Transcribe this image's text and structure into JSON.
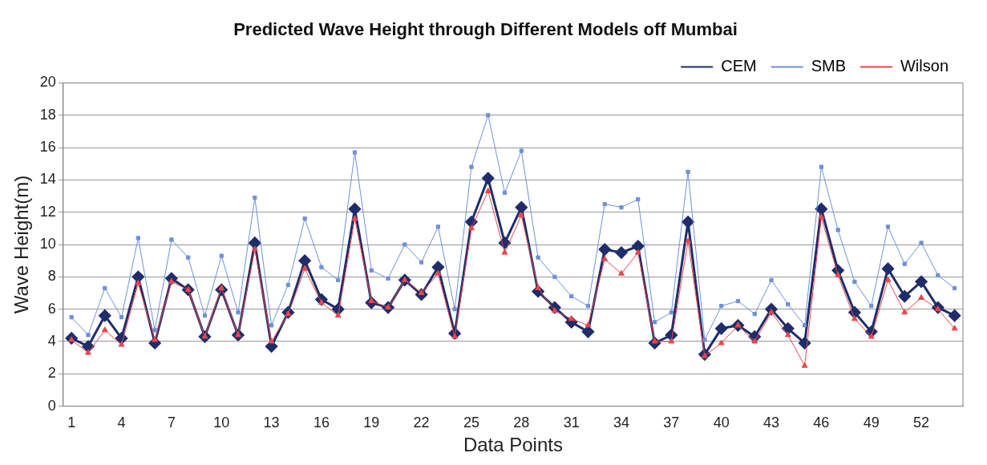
{
  "chart_data": {
    "type": "line",
    "title": "Predicted Wave Height through Different Models off Mumbai",
    "xlabel": "Data Points",
    "ylabel": "Wave Height(m)",
    "categories": [
      "1",
      null,
      null,
      "4",
      null,
      null,
      "7",
      null,
      null,
      "10",
      null,
      null,
      "13",
      null,
      null,
      "16",
      null,
      null,
      "19",
      null,
      null,
      "22",
      null,
      null,
      "25",
      null,
      null,
      "28",
      null,
      null,
      "31",
      null,
      null,
      "34",
      null,
      null,
      "37",
      null,
      null,
      "40",
      null,
      null,
      "43",
      null,
      null,
      "46",
      null,
      null,
      "49",
      null,
      null,
      "52",
      null,
      null
    ],
    "series": [
      {
        "name": "CEM",
        "color": "#1f2d6b",
        "marker": "diamond",
        "values": [
          4.2,
          3.7,
          5.6,
          4.2,
          8.0,
          3.9,
          7.9,
          7.2,
          4.3,
          7.2,
          4.4,
          10.1,
          3.7,
          5.8,
          9.0,
          6.6,
          6.0,
          12.2,
          6.4,
          6.1,
          7.8,
          6.9,
          8.6,
          4.5,
          11.4,
          14.1,
          10.1,
          12.3,
          7.1,
          6.1,
          5.2,
          4.6,
          9.7,
          9.5,
          9.9,
          3.9,
          4.4,
          11.4,
          3.2,
          4.8,
          5.0,
          4.3,
          6.0,
          4.8,
          3.9,
          12.2,
          8.4,
          5.8,
          4.6,
          8.5,
          6.8,
          7.7,
          6.1,
          5.6
        ]
      },
      {
        "name": "SMB",
        "color": "#6f90d8",
        "marker": "square",
        "values": [
          5.5,
          4.4,
          7.3,
          5.5,
          10.4,
          4.7,
          10.3,
          9.2,
          5.6,
          9.3,
          5.8,
          12.9,
          5.0,
          7.5,
          11.6,
          8.6,
          7.8,
          15.7,
          8.4,
          7.9,
          10.0,
          8.9,
          11.1,
          6.0,
          14.8,
          18.0,
          13.2,
          15.8,
          9.2,
          8.0,
          6.8,
          6.2,
          12.5,
          12.3,
          12.8,
          5.2,
          5.8,
          14.5,
          4.1,
          6.2,
          6.5,
          5.7,
          7.8,
          6.3,
          5.0,
          14.8,
          10.9,
          7.7,
          6.2,
          11.1,
          8.8,
          10.1,
          8.1,
          7.3
        ]
      },
      {
        "name": "Wilson",
        "color": "#e8474c",
        "marker": "triangle",
        "values": [
          4.1,
          3.3,
          4.7,
          3.8,
          7.6,
          4.1,
          7.7,
          7.2,
          4.3,
          7.3,
          4.4,
          9.7,
          4.0,
          5.7,
          8.5,
          6.4,
          5.6,
          11.6,
          6.5,
          6.1,
          7.8,
          7.0,
          8.2,
          4.3,
          11.0,
          13.3,
          9.5,
          11.8,
          7.3,
          5.9,
          5.4,
          5.0,
          9.1,
          8.2,
          9.5,
          4.0,
          4.0,
          10.2,
          3.1,
          3.9,
          5.0,
          4.0,
          5.8,
          4.4,
          2.5,
          11.7,
          8.1,
          5.4,
          4.3,
          7.8,
          5.8,
          6.7,
          6.0,
          4.8
        ]
      }
    ],
    "ylim": [
      0,
      20
    ],
    "yticks": [
      0,
      2,
      4,
      6,
      8,
      10,
      12,
      14,
      16,
      18,
      20
    ],
    "grid": "y",
    "legend": "top right",
    "line_style": "solid"
  }
}
